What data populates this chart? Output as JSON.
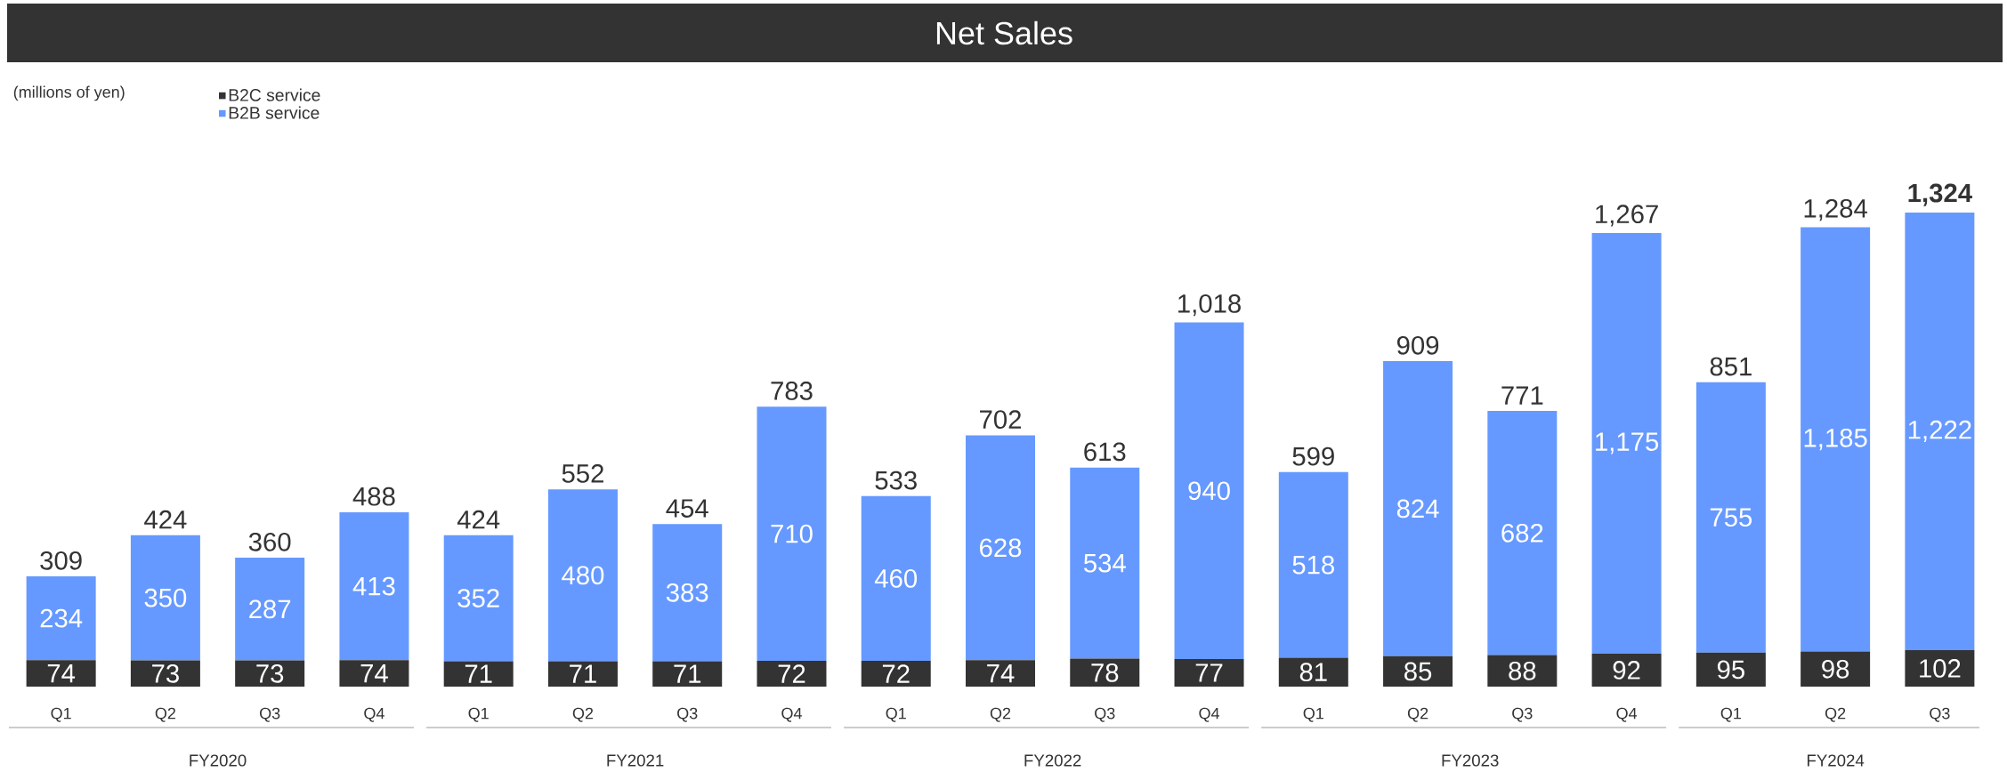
{
  "chart_data": {
    "type": "bar",
    "title": "Net Sales",
    "stacked": true,
    "legend": "top left",
    "categories": [
      "Q1",
      "Q2",
      "Q3",
      "Q4",
      "Q1",
      "Q2",
      "Q3",
      "Q4",
      "Q1",
      "Q2",
      "Q3",
      "Q4",
      "Q1",
      "Q2",
      "Q3",
      "Q4",
      "Q1",
      "Q2",
      "Q3"
    ],
    "series": [
      {
        "name": "B2C service",
        "color": "#333333",
        "values": [
          74,
          73,
          73,
          74,
          71,
          71,
          71,
          72,
          72,
          74,
          78,
          77,
          81,
          85,
          88,
          92,
          95,
          98,
          102
        ],
        "value_labels": [
          "74",
          "73",
          "73",
          "74",
          "71",
          "71",
          "71",
          "72",
          "72",
          "74",
          "78",
          "77",
          "81",
          "85",
          "88",
          "92",
          "95",
          "98",
          "102"
        ]
      },
      {
        "name": "B2B service",
        "color": "#6699ff",
        "values": [
          234,
          350,
          287,
          413,
          352,
          480,
          383,
          710,
          460,
          628,
          534,
          940,
          518,
          824,
          682,
          1175,
          755,
          1185,
          1222
        ],
        "value_labels": [
          "234",
          "350",
          "287",
          "413",
          "352",
          "480",
          "383",
          "710",
          "460",
          "628",
          "534",
          "940",
          "518",
          "824",
          "682",
          "1,175",
          "755",
          "1,185",
          "1,222"
        ]
      }
    ],
    "totals": [
      "309",
      "424",
      "360",
      "488",
      "424",
      "552",
      "454",
      "783",
      "533",
      "702",
      "613",
      "1,018",
      "599",
      "909",
      "771",
      "1,267",
      "851",
      "1,284",
      "**1,324**"
    ],
    "annotations": [
      "(millions of yen)",
      "FY2020",
      "FY2021",
      "FY2022",
      "FY2023",
      "FY2024"
    ]
  }
}
